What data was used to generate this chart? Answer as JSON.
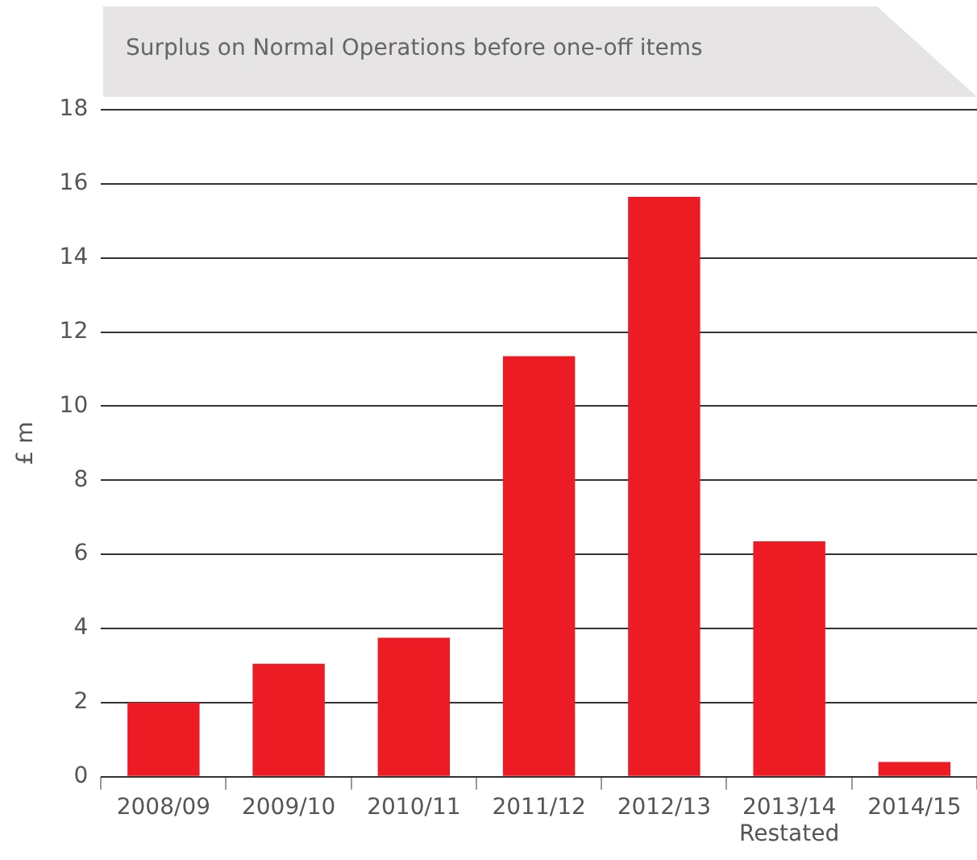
{
  "chart_data": {
    "type": "bar",
    "title": "Surplus on Normal Operations before one-off items",
    "ylabel": "£ m",
    "categories": [
      "2008/09",
      "2009/10",
      "2010/11",
      "2011/12",
      "2012/13",
      "2013/14\nRestated",
      "2014/15"
    ],
    "values": [
      2.0,
      3.05,
      3.75,
      11.35,
      15.65,
      6.35,
      0.4
    ],
    "color": "#ed1c24",
    "ylim": [
      0,
      18
    ],
    "yticks": [
      0,
      2,
      4,
      6,
      8,
      10,
      12,
      14,
      16,
      18
    ],
    "grid": "y",
    "legend": false
  }
}
